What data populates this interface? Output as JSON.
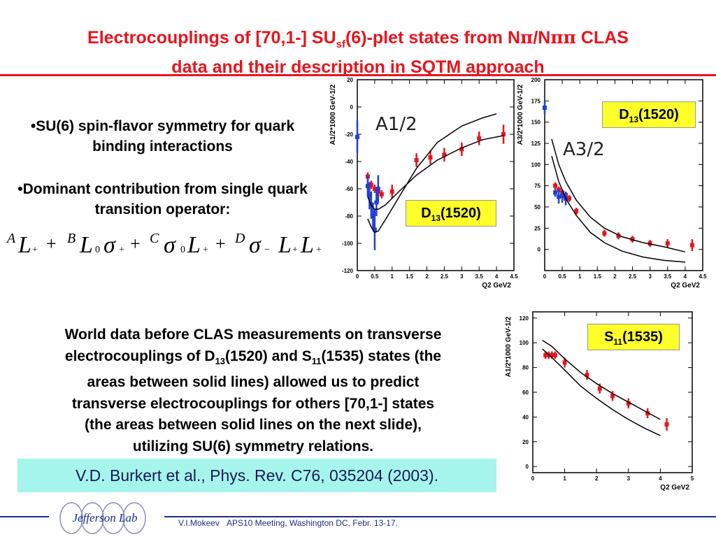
{
  "slide": {
    "title_part1": "Electrocouplings of [70,1-] SU",
    "title_sub": "sf",
    "title_part2": "(6)-plet states from N",
    "title_pi1": "π",
    "title_part3": "/N",
    "title_pi2": "ππ",
    "title_part4": " CLAS",
    "title_line2": "data and their description in SQTM approach"
  },
  "bullets": [
    "•SU(6) spin-flavor symmetry for quark binding interactions",
    "•Dominant contribution from single quark transition operator:"
  ],
  "formula": {
    "A": "A",
    "B": "B",
    "C": "C",
    "D": "D",
    "L": "L",
    "plus": "+",
    "sub_plus": "+",
    "sub_zero": "0",
    "sub_minus": "−",
    "sigma": "σ"
  },
  "world_text": {
    "l1": "World data before CLAS measurements on transverse",
    "l2a": "electrocouplings of D",
    "l2b": "13",
    "l2c": "(1520) and S",
    "l2d": "11",
    "l2e": "(1535) states (the",
    "l3": "areas between solid lines) allowed us to predict",
    "l4": "transverse electrocouplings for others [70,1-] states",
    "l5": "(the areas between solid lines on the next slide),",
    "l6": "utilizing SU(6) symmetry relations."
  },
  "citation": "V.D. Burkert et al., Phys. Rev. C76, 035204 (2003).",
  "footer": {
    "author": "V.I.Mokeev",
    "meeting": "APS10 Meeting, Washington DC, Febr. 13-17.",
    "logo_text": "Jefferson Lab"
  },
  "chart_data": [
    {
      "type": "scatter",
      "title": "D13(1520) A1/2",
      "state_label": "D13(1520)",
      "inplot_label": "A1/2",
      "ylabel": "A1/2*1000 GeV-1/2",
      "xlabel": "Q2 GeV2",
      "xlim": [
        0,
        4.5
      ],
      "ylim": [
        -120,
        20
      ],
      "xticks": [
        "0",
        "0.5",
        "1",
        "1.5",
        "2",
        "2.5",
        "3",
        "3.5",
        "4",
        "4.5"
      ],
      "yticks": [
        "20",
        "0",
        "-20",
        "-40",
        "-60",
        "-80",
        "-100",
        "-120"
      ],
      "colors": {
        "clas": "#e8141d",
        "world": "#1f3fd6",
        "curve": "#000000"
      },
      "series": [
        {
          "color": "clas",
          "points": [
            [
              0.3,
              -51,
              3
            ],
            [
              0.4,
              -57,
              3
            ],
            [
              0.5,
              -60,
              3
            ],
            [
              0.6,
              -62,
              3
            ],
            [
              0.7,
              -64,
              3
            ],
            [
              1.0,
              -62,
              5
            ],
            [
              1.7,
              -39,
              5
            ],
            [
              2.1,
              -37,
              5
            ],
            [
              2.5,
              -35,
              5
            ],
            [
              3.0,
              -31,
              5
            ],
            [
              3.5,
              -23,
              5
            ],
            [
              4.2,
              -20,
              7
            ]
          ]
        },
        {
          "color": "world",
          "points": [
            [
              0.3,
              -58,
              8
            ],
            [
              0.35,
              -65,
              10
            ],
            [
              0.4,
              -72,
              10
            ],
            [
              0.45,
              -80,
              10
            ],
            [
              0.5,
              -90,
              15
            ],
            [
              0.55,
              -70,
              10
            ],
            [
              0.6,
              -60,
              10
            ],
            [
              0.0,
              -22,
              12
            ]
          ]
        },
        {
          "color": "curve",
          "points": [
            [
              0.3,
              -66
            ],
            [
              0.4,
              -72
            ],
            [
              0.5,
              -75
            ],
            [
              0.6,
              -75
            ],
            [
              0.8,
              -72
            ],
            [
              1.2,
              -62
            ],
            [
              1.7,
              -50
            ],
            [
              2.3,
              -39
            ],
            [
              3.0,
              -30
            ],
            [
              3.6,
              -24
            ],
            [
              4.2,
              -21
            ]
          ]
        },
        {
          "color": "curve",
          "points": [
            [
              0.3,
              -82
            ],
            [
              0.4,
              -88
            ],
            [
              0.5,
              -92
            ],
            [
              0.6,
              -91
            ],
            [
              0.8,
              -83
            ],
            [
              1.2,
              -66
            ],
            [
              1.7,
              -45
            ],
            [
              2.3,
              -26
            ],
            [
              3.0,
              -14
            ],
            [
              3.6,
              -8
            ],
            [
              4.0,
              -5
            ]
          ]
        }
      ]
    },
    {
      "type": "scatter",
      "title": "D13(1520) A3/2",
      "state_label": "D13(1520)",
      "inplot_label": "A3/2",
      "ylabel": "A3/2*1000 GeV-1/2",
      "xlabel": "Q2 GeV2",
      "xlim": [
        0,
        4.5
      ],
      "ylim": [
        -25,
        200
      ],
      "xticks": [
        "0",
        "0.5",
        "1",
        "1.5",
        "2",
        "2.5",
        "3",
        "3.5",
        "4",
        "4.5"
      ],
      "yticks": [
        "200",
        "175",
        "150",
        "125",
        "100",
        "75",
        "50",
        "25",
        "0"
      ],
      "colors": {
        "clas": "#e8141d",
        "world": "#1f3fd6",
        "curve": "#000000"
      },
      "series": [
        {
          "color": "clas",
          "points": [
            [
              0.3,
              75,
              4
            ],
            [
              0.4,
              70,
              4
            ],
            [
              0.5,
              67,
              4
            ],
            [
              0.6,
              64,
              4
            ],
            [
              0.7,
              60,
              4
            ],
            [
              0.9,
              45,
              4
            ],
            [
              1.7,
              19,
              4
            ],
            [
              2.1,
              16,
              4
            ],
            [
              2.5,
              12,
              4
            ],
            [
              3.0,
              7,
              4
            ],
            [
              3.5,
              7,
              5
            ],
            [
              4.2,
              5,
              7
            ]
          ]
        },
        {
          "color": "world",
          "points": [
            [
              0.3,
              67,
              5
            ],
            [
              0.4,
              62,
              8
            ],
            [
              0.5,
              63,
              8
            ],
            [
              0.6,
              60,
              8
            ],
            [
              0.0,
              167,
              8
            ]
          ]
        },
        {
          "color": "curve",
          "points": [
            [
              0.2,
              130
            ],
            [
              0.4,
              100
            ],
            [
              0.6,
              80
            ],
            [
              0.9,
              58
            ],
            [
              1.3,
              38
            ],
            [
              1.7,
              25
            ],
            [
              2.2,
              15
            ],
            [
              2.8,
              8
            ],
            [
              3.4,
              3
            ],
            [
              4.0,
              -3
            ]
          ]
        },
        {
          "color": "curve",
          "points": [
            [
              0.2,
              110
            ],
            [
              0.4,
              80
            ],
            [
              0.6,
              60
            ],
            [
              0.9,
              40
            ],
            [
              1.3,
              20
            ],
            [
              1.7,
              8
            ],
            [
              2.2,
              -2
            ],
            [
              2.8,
              -9
            ],
            [
              3.4,
              -13
            ],
            [
              4.0,
              -15
            ]
          ]
        }
      ]
    },
    {
      "type": "scatter",
      "title": "S11(1535) A1/2",
      "state_label": "S11(1535)",
      "ylabel": "A1/2*1000 GeV-1/2",
      "xlabel": "Q2 GeV2",
      "xlim": [
        0,
        5
      ],
      "ylim": [
        -5,
        125
      ],
      "xticks": [
        "0",
        "1",
        "2",
        "3",
        "4",
        "5"
      ],
      "yticks": [
        "120",
        "100",
        "80",
        "60",
        "40",
        "20",
        "0"
      ],
      "colors": {
        "clas": "#e8141d",
        "curve": "#000000"
      },
      "series": [
        {
          "color": "clas",
          "points": [
            [
              0.4,
              90,
              3
            ],
            [
              0.5,
              90,
              3
            ],
            [
              0.6,
              90,
              3
            ],
            [
              0.7,
              90,
              3
            ],
            [
              1.0,
              84,
              4
            ],
            [
              1.7,
              74,
              4
            ],
            [
              2.1,
              63,
              4
            ],
            [
              2.5,
              57,
              4
            ],
            [
              3.0,
              51,
              4
            ],
            [
              3.6,
              43,
              4
            ],
            [
              4.2,
              34,
              5
            ]
          ]
        },
        {
          "color": "curve",
          "points": [
            [
              0.3,
              102
            ],
            [
              0.6,
              97
            ],
            [
              1.0,
              87
            ],
            [
              1.5,
              76
            ],
            [
              2.0,
              67
            ],
            [
              2.5,
              59
            ],
            [
              3.0,
              52
            ],
            [
              3.5,
              45
            ],
            [
              4.0,
              38
            ]
          ]
        },
        {
          "color": "curve",
          "points": [
            [
              0.3,
              95
            ],
            [
              0.6,
              88
            ],
            [
              1.0,
              78
            ],
            [
              1.5,
              65
            ],
            [
              2.0,
              55
            ],
            [
              2.5,
              46
            ],
            [
              3.0,
              38
            ],
            [
              3.5,
              31
            ],
            [
              4.0,
              25
            ]
          ]
        }
      ]
    }
  ]
}
